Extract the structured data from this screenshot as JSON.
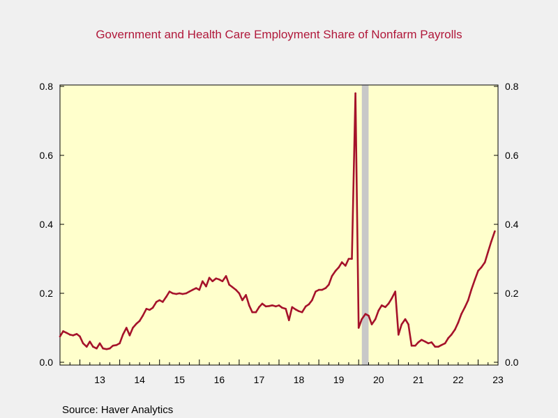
{
  "chart_data": {
    "type": "line",
    "title": "Government and Health Care Employment Share of Nonfarm Payrolls",
    "source": "Source:  Haver Analytics",
    "ylim": [
      0,
      0.8
    ],
    "y_ticks": [
      "0.0",
      "0.2",
      "0.4",
      "0.6",
      "0.8"
    ],
    "xlim": [
      2012.5,
      2023.5
    ],
    "x_ticks": [
      "13",
      "14",
      "15",
      "16",
      "17",
      "18",
      "19",
      "20",
      "21",
      "22",
      "23"
    ],
    "grid": false,
    "recession_shading": [
      {
        "start": 2020.08,
        "end": 2020.25
      }
    ],
    "colors": {
      "series": "#a5122a",
      "title": "#b0183a",
      "plot_background": "#ffffcc",
      "page_background": "#f0f0f0",
      "recession": "#c8c8c8"
    },
    "series": [
      {
        "x": [
          2012.5,
          2012.58,
          2012.67,
          2012.75,
          2012.83,
          2012.92,
          2013.0,
          2013.08,
          2013.17,
          2013.25,
          2013.33,
          2013.42,
          2013.5,
          2013.58,
          2013.67,
          2013.75,
          2013.83,
          2013.92,
          2014.0,
          2014.08,
          2014.17,
          2014.25,
          2014.33,
          2014.42,
          2014.5,
          2014.58,
          2014.67,
          2014.75,
          2014.83,
          2014.92,
          2015.0,
          2015.08,
          2015.17,
          2015.25,
          2015.33,
          2015.42,
          2015.5,
          2015.58,
          2015.67,
          2015.75,
          2015.83,
          2015.92,
          2016.0,
          2016.08,
          2016.17,
          2016.25,
          2016.33,
          2016.42,
          2016.5,
          2016.58,
          2016.67,
          2016.75,
          2016.83,
          2016.92,
          2017.0,
          2017.08,
          2017.17,
          2017.25,
          2017.33,
          2017.42,
          2017.5,
          2017.58,
          2017.67,
          2017.75,
          2017.83,
          2017.92,
          2018.0,
          2018.08,
          2018.17,
          2018.25,
          2018.33,
          2018.42,
          2018.5,
          2018.58,
          2018.67,
          2018.75,
          2018.83,
          2018.92,
          2019.0,
          2019.08,
          2019.17,
          2019.25,
          2019.33,
          2019.42,
          2019.5,
          2019.58,
          2019.67,
          2019.75,
          2019.83,
          2019.92,
          2020.0,
          2020.08,
          2020.17,
          2020.25,
          2020.33,
          2020.42,
          2020.5,
          2020.58,
          2020.67,
          2020.75,
          2020.83,
          2020.92,
          2021.0,
          2021.08,
          2021.17,
          2021.25,
          2021.33,
          2021.42,
          2021.5,
          2021.58,
          2021.67,
          2021.75,
          2021.83,
          2021.92,
          2022.0,
          2022.08,
          2022.17,
          2022.25,
          2022.33,
          2022.42,
          2022.5,
          2022.58,
          2022.67,
          2022.75,
          2022.83,
          2022.92,
          2023.0,
          2023.08,
          2023.17,
          2023.25,
          2023.33,
          2023.42
        ],
        "values": [
          0.075,
          0.09,
          0.085,
          0.08,
          0.078,
          0.082,
          0.075,
          0.055,
          0.045,
          0.06,
          0.045,
          0.04,
          0.055,
          0.04,
          0.038,
          0.04,
          0.048,
          0.05,
          0.055,
          0.08,
          0.1,
          0.078,
          0.1,
          0.112,
          0.12,
          0.135,
          0.155,
          0.152,
          0.158,
          0.175,
          0.18,
          0.175,
          0.19,
          0.205,
          0.2,
          0.198,
          0.2,
          0.198,
          0.2,
          0.205,
          0.21,
          0.215,
          0.21,
          0.235,
          0.22,
          0.245,
          0.235,
          0.243,
          0.24,
          0.235,
          0.25,
          0.225,
          0.218,
          0.21,
          0.2,
          0.18,
          0.195,
          0.165,
          0.145,
          0.145,
          0.16,
          0.17,
          0.162,
          0.163,
          0.165,
          0.162,
          0.165,
          0.158,
          0.155,
          0.122,
          0.16,
          0.153,
          0.148,
          0.145,
          0.162,
          0.168,
          0.18,
          0.205,
          0.21,
          0.21,
          0.215,
          0.225,
          0.25,
          0.265,
          0.275,
          0.29,
          0.28,
          0.3,
          0.3,
          0.78,
          0.1,
          0.125,
          0.14,
          0.135,
          0.11,
          0.125,
          0.15,
          0.165,
          0.16,
          0.17,
          0.185,
          0.205,
          0.08,
          0.11,
          0.125,
          0.11,
          0.048,
          0.048,
          0.058,
          0.065,
          0.06,
          0.055,
          0.058,
          0.045,
          0.045,
          0.05,
          0.055,
          0.07,
          0.08,
          0.095,
          0.115,
          0.14,
          0.16,
          0.18,
          0.21,
          0.24,
          0.265,
          0.275,
          0.29,
          0.32,
          0.35,
          0.38
        ]
      }
    ]
  }
}
